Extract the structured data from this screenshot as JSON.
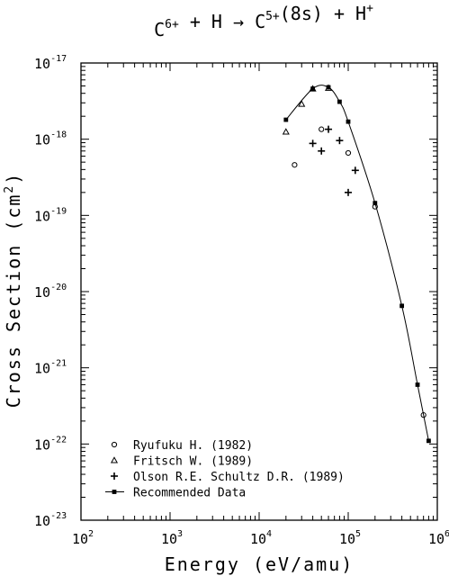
{
  "chart_data": {
    "type": "scatter",
    "title": {
      "parts": [
        {
          "text": "C",
          "sup": "6+"
        },
        {
          "text": " + H → C",
          "sup": "5+"
        },
        {
          "text": "(8s) + H",
          "sup": "+"
        }
      ]
    },
    "xlabel": "Energy (eV/amu)",
    "ylabel": {
      "text": "Cross Section (cm",
      "sup": "2",
      "after": ")"
    },
    "x_scale": "log",
    "y_scale": "log",
    "xlim": [
      100,
      1000000
    ],
    "ylim": [
      1e-23,
      1e-17
    ],
    "x_ticks": [
      {
        "base": "10",
        "exp": "2"
      },
      {
        "base": "10",
        "exp": "3"
      },
      {
        "base": "10",
        "exp": "4"
      },
      {
        "base": "10",
        "exp": "5"
      },
      {
        "base": "10",
        "exp": "6"
      }
    ],
    "y_ticks": [
      {
        "base": "10",
        "exp": "-23"
      },
      {
        "base": "10",
        "exp": "-22"
      },
      {
        "base": "10",
        "exp": "-21"
      },
      {
        "base": "10",
        "exp": "-20"
      },
      {
        "base": "10",
        "exp": "-19"
      },
      {
        "base": "10",
        "exp": "-18"
      },
      {
        "base": "10",
        "exp": "-17"
      }
    ],
    "grid": false,
    "legend_position": "bottom-left",
    "series": [
      {
        "name": "Ryufuku H. (1982)",
        "marker": "circle",
        "points": [
          [
            25000,
            4.6e-19
          ],
          [
            50000,
            1.35e-18
          ],
          [
            100000,
            6.6e-19
          ],
          [
            200000,
            1.3e-19
          ],
          [
            700000,
            2.4e-22
          ]
        ]
      },
      {
        "name": "Fritsch W. (1989)",
        "marker": "triangle",
        "points": [
          [
            20000,
            1.25e-18
          ],
          [
            30000,
            2.9e-18
          ],
          [
            40000,
            4.6e-18
          ],
          [
            60000,
            4.7e-18
          ]
        ]
      },
      {
        "name": "Olson R.E. Schultz D.R. (1989)",
        "marker": "plus-diamond",
        "points": [
          [
            40000,
            8.8e-19
          ],
          [
            50000,
            7e-19
          ],
          [
            60000,
            1.35e-18
          ],
          [
            80000,
            9.6e-19
          ],
          [
            120000,
            3.9e-19
          ],
          [
            100000,
            2e-19
          ]
        ]
      },
      {
        "name": "Recommended Data",
        "marker": "star",
        "line": true,
        "points": [
          [
            20000,
            1.8e-18
          ],
          [
            40000,
            4.6e-18
          ],
          [
            60000,
            4.8e-18
          ],
          [
            80000,
            3.1e-18
          ],
          [
            100000,
            1.7e-18
          ],
          [
            200000,
            1.45e-19
          ],
          [
            400000,
            6.5e-21
          ],
          [
            600000,
            6e-22
          ],
          [
            800000,
            1.1e-22
          ]
        ]
      }
    ]
  }
}
